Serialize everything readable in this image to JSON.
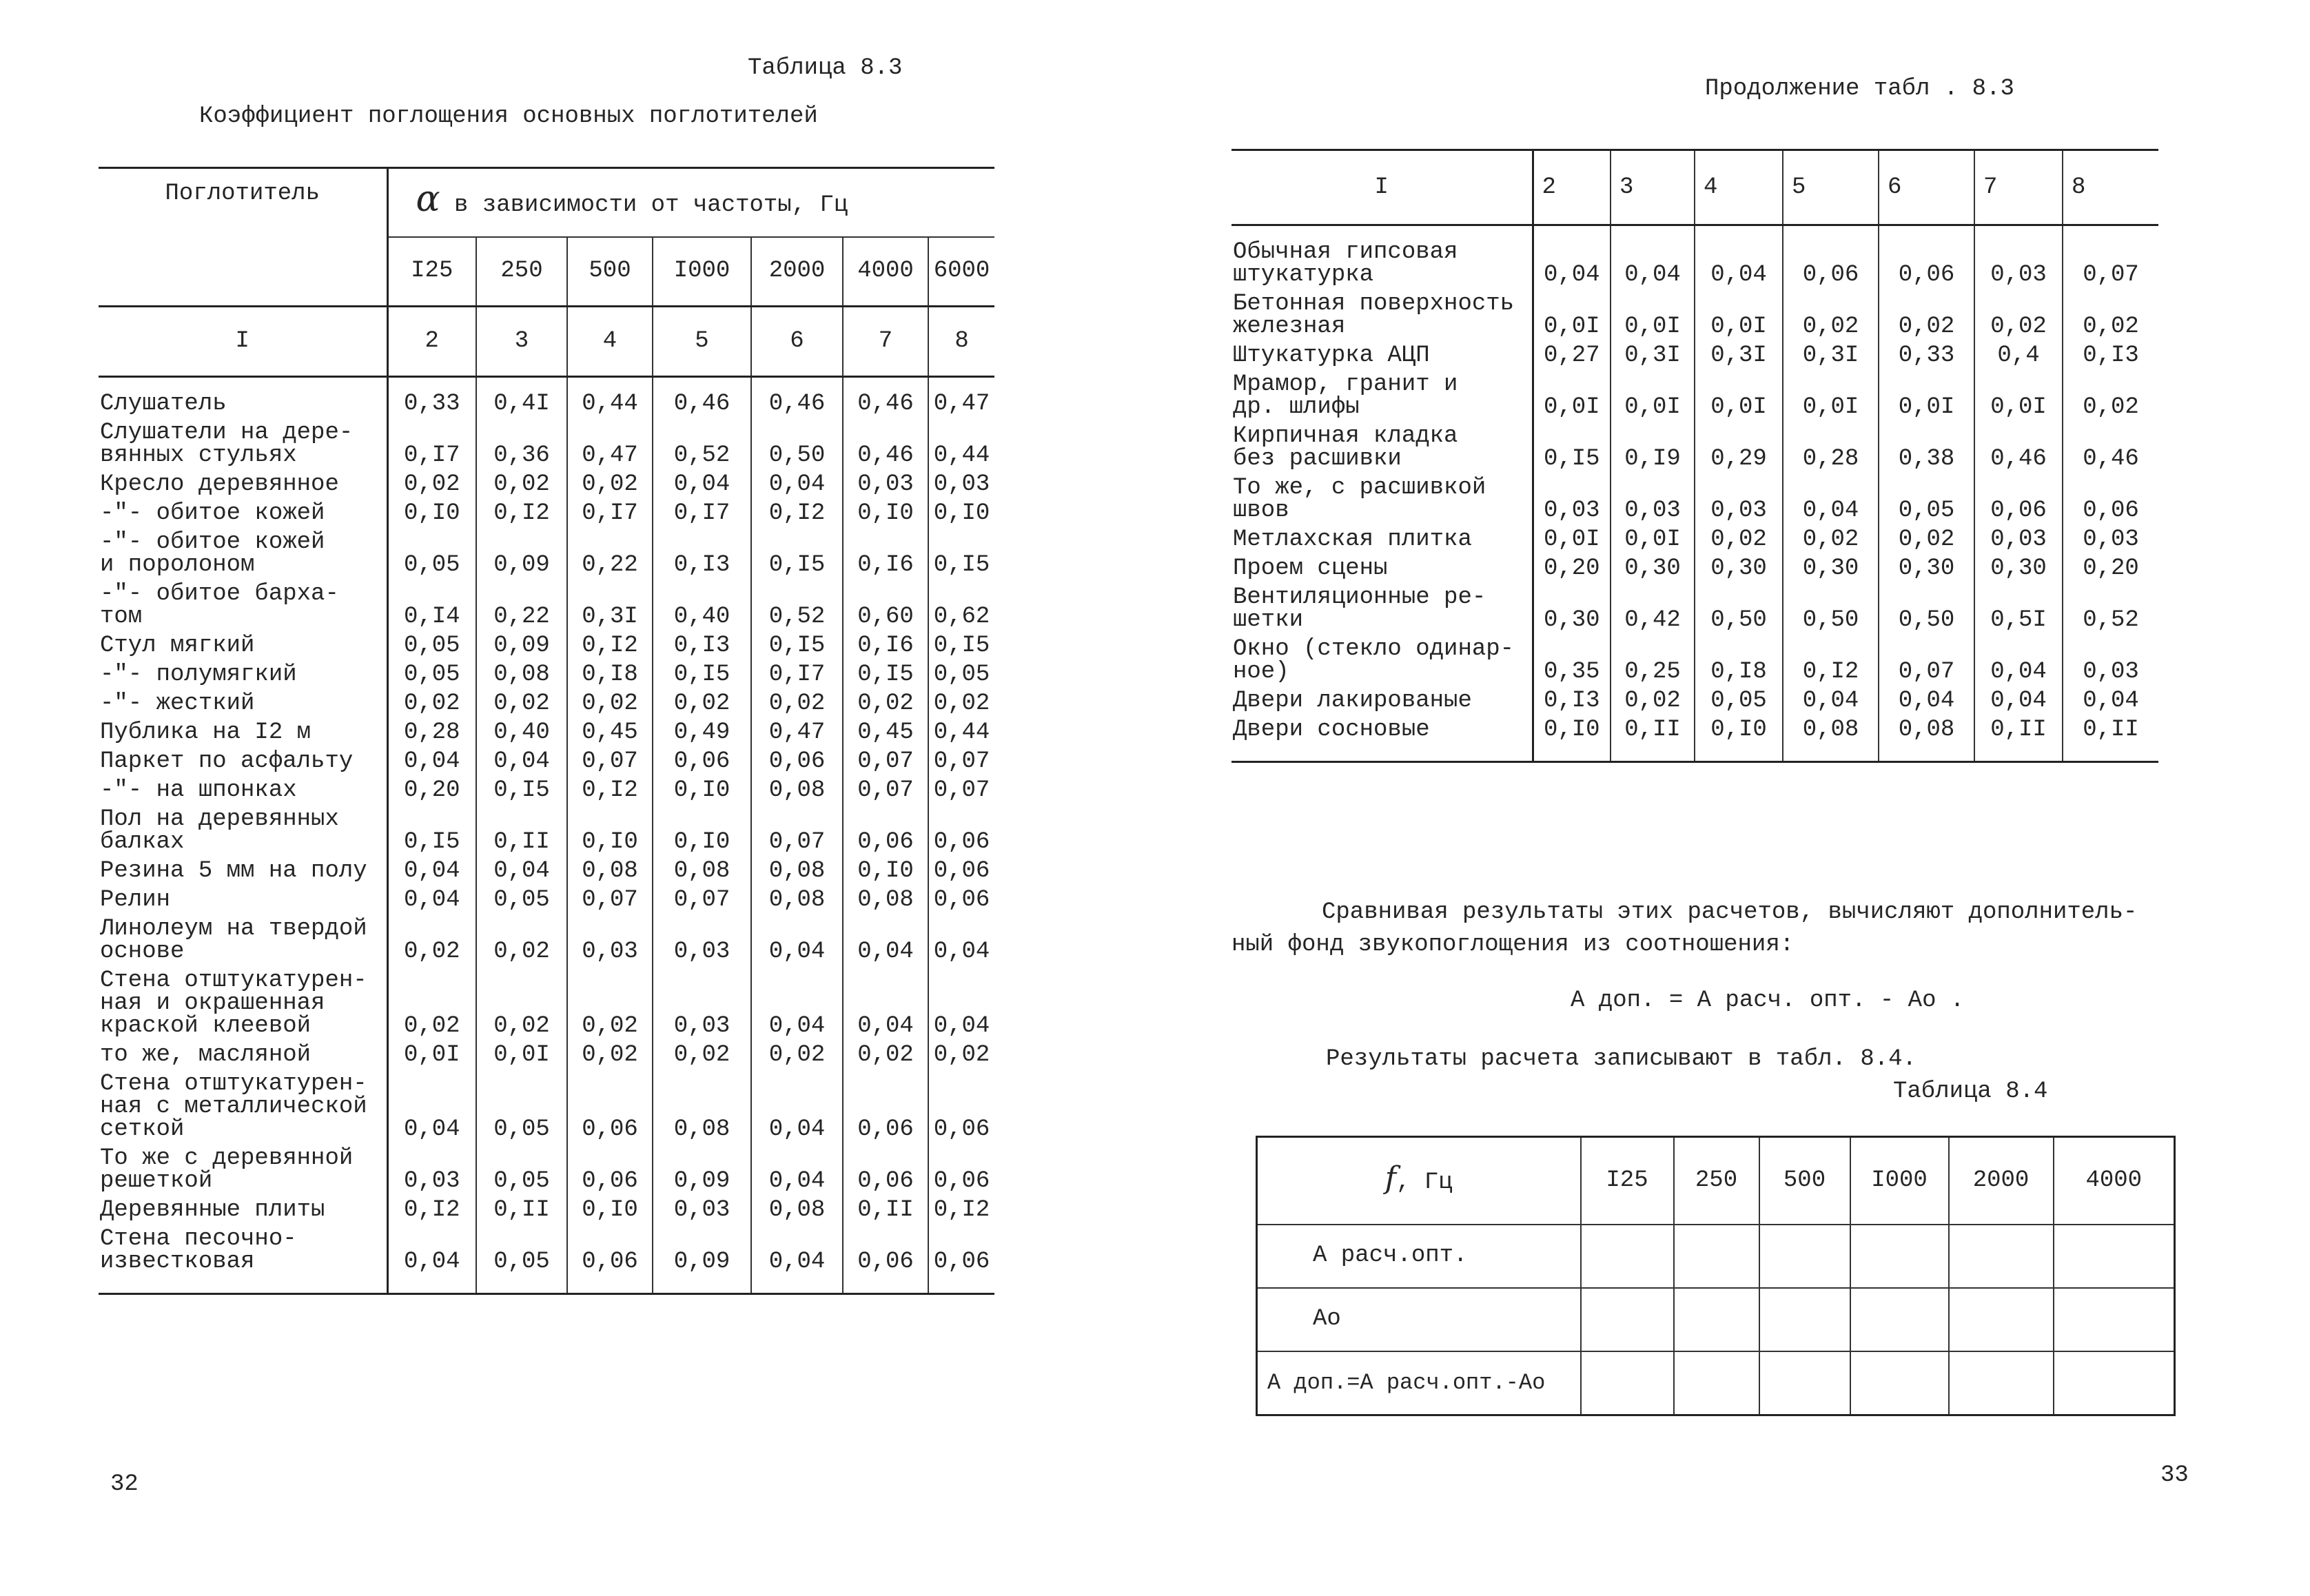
{
  "left_page": {
    "table_label": "Таблица 8.3",
    "table_title": "Коэффициент поглощения основных поглотителей",
    "header": {
      "absorber": "Поглотитель",
      "alpha_symbol": "α",
      "frequency_caption": "в зависимости от частоты, Гц",
      "frequencies": [
        "I25",
        "250",
        "500",
        "I000",
        "2000",
        "4000",
        "6000"
      ],
      "column_numbers": [
        "I",
        "2",
        "3",
        "4",
        "5",
        "6",
        "7",
        "8"
      ]
    },
    "rows": [
      {
        "label": "Слушатель",
        "values": [
          "0,33",
          "0,4I",
          "0,44",
          "0,46",
          "0,46",
          "0,46",
          "0,47"
        ]
      },
      {
        "label": "Слушатели на дере-\nвянных стульях",
        "values": [
          "0,I7",
          "0,36",
          "0,47",
          "0,52",
          "0,50",
          "0,46",
          "0,44"
        ]
      },
      {
        "label": "Кресло деревянное",
        "values": [
          "0,02",
          "0,02",
          "0,02",
          "0,04",
          "0,04",
          "0,03",
          "0,03"
        ]
      },
      {
        "label": "  -\"-  обитое кожей",
        "values": [
          "0,I0",
          "0,I2",
          "0,I7",
          "0,I7",
          "0,I2",
          "0,I0",
          "0,I0"
        ]
      },
      {
        "label": "  -\"-  обитое кожей\nи поролоном",
        "values": [
          "0,05",
          "0,09",
          "0,22",
          "0,I3",
          "0,I5",
          "0,I6",
          "0,I5"
        ]
      },
      {
        "label": "  -\"-  обитое барха-\nтом",
        "values": [
          "0,I4",
          "0,22",
          "0,3I",
          "0,40",
          "0,52",
          "0,60",
          "0,62"
        ]
      },
      {
        "label": "Стул мягкий",
        "values": [
          "0,05",
          "0,09",
          "0,I2",
          "0,I3",
          "0,I5",
          "0,I6",
          "0,I5"
        ]
      },
      {
        "label": "-\"- полумягкий",
        "values": [
          "0,05",
          "0,08",
          "0,I8",
          "0,I5",
          "0,I7",
          "0,I5",
          "0,05"
        ]
      },
      {
        "label": "-\"- жесткий",
        "values": [
          "0,02",
          "0,02",
          "0,02",
          "0,02",
          "0,02",
          "0,02",
          "0,02"
        ]
      },
      {
        "label": "Публика на I2 м",
        "values": [
          "0,28",
          "0,40",
          "0,45",
          "0,49",
          "0,47",
          "0,45",
          "0,44"
        ]
      },
      {
        "label": "Паркет по асфальту",
        "values": [
          "0,04",
          "0,04",
          "0,07",
          "0,06",
          "0,06",
          "0,07",
          "0,07"
        ]
      },
      {
        "label": "  -\"- на шпонках",
        "values": [
          "0,20",
          "0,I5",
          "0,I2",
          "0,I0",
          "0,08",
          "0,07",
          "0,07"
        ]
      },
      {
        "label": "Пол на деревянных\nбалках",
        "values": [
          "0,I5",
          "0,II",
          "0,I0",
          "0,I0",
          "0,07",
          "0,06",
          "0,06"
        ]
      },
      {
        "label": "Резина 5 мм на полу",
        "values": [
          "0,04",
          "0,04",
          "0,08",
          "0,08",
          "0,08",
          "0,I0",
          "0,06"
        ]
      },
      {
        "label": "Релин",
        "values": [
          "0,04",
          "0,05",
          "0,07",
          "0,07",
          "0,08",
          "0,08",
          "0,06"
        ]
      },
      {
        "label": "Линолеум на твердой\nоснове",
        "values": [
          "0,02",
          "0,02",
          "0,03",
          "0,03",
          "0,04",
          "0,04",
          "0,04"
        ]
      },
      {
        "label": "Стена отштукатурен-\nная и окрашенная\nкраской клеевой",
        "values": [
          "0,02",
          "0,02",
          "0,02",
          "0,03",
          "0,04",
          "0,04",
          "0,04"
        ]
      },
      {
        "label": "то же, масляной",
        "values": [
          "0,0I",
          "0,0I",
          "0,02",
          "0,02",
          "0,02",
          "0,02",
          "0,02"
        ]
      },
      {
        "label": "Стена отштукатурен-\nная с металлической\nсеткой",
        "values": [
          "0,04",
          "0,05",
          "0,06",
          "0,08",
          "0,04",
          "0,06",
          "0,06"
        ]
      },
      {
        "label": "То же с деревянной\nрешеткой",
        "values": [
          "0,03",
          "0,05",
          "0,06",
          "0,09",
          "0,04",
          "0,06",
          "0,06"
        ]
      },
      {
        "label": "Деревянные плиты",
        "values": [
          "0,I2",
          "0,II",
          "0,I0",
          "0,03",
          "0,08",
          "0,II",
          "0,I2"
        ]
      },
      {
        "label": "Стена песочно-\nизвестковая",
        "values": [
          "0,04",
          "0,05",
          "0,06",
          "0,09",
          "0,04",
          "0,06",
          "0,06"
        ]
      }
    ],
    "page_number": "32"
  },
  "right_page": {
    "continuation_label": "Продолжение табл . 8.3",
    "column_numbers": [
      "I",
      "2",
      "3",
      "4",
      "5",
      "6",
      "7",
      "8"
    ],
    "rows": [
      {
        "label": "Обычная гипсовая\nштукатурка",
        "values": [
          "0,04",
          "0,04",
          "0,04",
          "0,06",
          "0,06",
          "0,03",
          "0,07"
        ]
      },
      {
        "label": "Бетонная поверхность\nжелезная",
        "values": [
          "0,0I",
          "0,0I",
          "0,0I",
          "0,02",
          "0,02",
          "0,02",
          "0,02"
        ]
      },
      {
        "label": "Штукатурка АЦП",
        "values": [
          "0,27",
          "0,3I",
          "0,3I",
          "0,3I",
          "0,33",
          "0,4",
          "0,I3"
        ]
      },
      {
        "label": "Мрамор, гранит и\nдр. шлифы",
        "values": [
          "0,0I",
          "0,0I",
          "0,0I",
          "0,0I",
          "0,0I",
          "0,0I",
          "0,02"
        ]
      },
      {
        "label": "Кирпичная кладка\nбез расшивки",
        "values": [
          "0,I5",
          "0,I9",
          "0,29",
          "0,28",
          "0,38",
          "0,46",
          "0,46"
        ]
      },
      {
        "label": "То же, с расшивкой\nшвов",
        "values": [
          "0,03",
          "0,03",
          "0,03",
          "0,04",
          "0,05",
          "0,06",
          "0,06"
        ]
      },
      {
        "label": "Метлахская плитка",
        "values": [
          "0,0I",
          "0,0I",
          "0,02",
          "0,02",
          "0,02",
          "0,03",
          "0,03"
        ]
      },
      {
        "label": "Проем сцены",
        "values": [
          "0,20",
          "0,30",
          "0,30",
          "0,30",
          "0,30",
          "0,30",
          "0,20"
        ]
      },
      {
        "label": "Вентиляционные ре-\nшетки",
        "values": [
          "0,30",
          "0,42",
          "0,50",
          "0,50",
          "0,50",
          "0,5I",
          "0,52"
        ]
      },
      {
        "label": "Окно (стекло одинар-\nное)",
        "values": [
          "0,35",
          "0,25",
          "0,I8",
          "0,I2",
          "0,07",
          "0,04",
          "0,03"
        ]
      },
      {
        "label": "Двери лакированые",
        "values": [
          "0,I3",
          "0,02",
          "0,05",
          "0,04",
          "0,04",
          "0,04",
          "0,04"
        ]
      },
      {
        "label": "Двери сосновые",
        "values": [
          "0,I0",
          "0,II",
          "0,I0",
          "0,08",
          "0,08",
          "0,II",
          "0,II"
        ]
      }
    ],
    "paragraph_line1": "Сравнивая результаты этих расчетов, вычисляют дополнитель-",
    "paragraph_line2": "ный фонд звукопоглощения из соотношения:",
    "formula": "А доп. = А расч. опт. - Ао .",
    "results_note": "Результаты расчета записывают в табл. 8.4.",
    "table84": {
      "label": "Таблица 8.4",
      "f_symbol": "f",
      "f_unit": ", Гц",
      "frequencies": [
        "I25",
        "250",
        "500",
        "I000",
        "2000",
        "4000"
      ],
      "row_labels": [
        "А расч.опт.",
        "Ао",
        "А доп.=А расч.опт.-Ао"
      ]
    },
    "page_number": "33"
  }
}
